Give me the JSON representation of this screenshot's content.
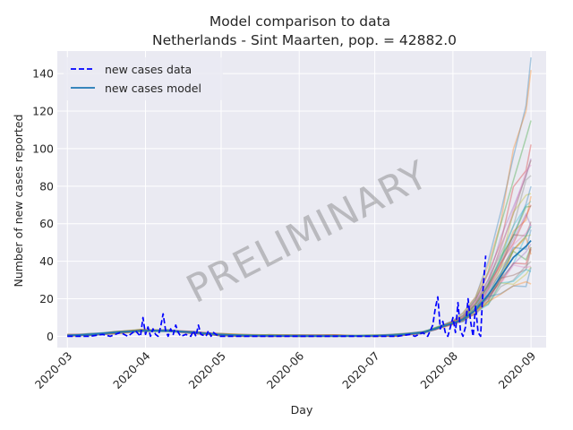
{
  "chart_data": {
    "type": "line",
    "title": "Model comparison to data",
    "subtitle": "Netherlands - Sint Maarten, pop. = 42882.0",
    "xlabel": "Day",
    "ylabel": "Number of new cases reported",
    "watermark": "PRELIMINARY",
    "x_range": [
      "2020-02-26",
      "2020-09-07"
    ],
    "ylim": [
      -6,
      152
    ],
    "x_ticks": [
      "2020-03",
      "2020-04",
      "2020-05",
      "2020-06",
      "2020-07",
      "2020-08",
      "2020-09"
    ],
    "y_ticks": [
      0,
      20,
      40,
      60,
      80,
      100,
      120,
      140
    ],
    "grid": true,
    "background": "#eaeaf2",
    "legend": {
      "position": "top-left",
      "entries": [
        {
          "label": "new cases data",
          "style": "dashed",
          "color": "#0000ff"
        },
        {
          "label": "new cases model",
          "style": "solid",
          "color": "#1f77b4"
        }
      ]
    },
    "series": [
      {
        "name": "new cases data",
        "style": "dashed",
        "color": "#0000ff",
        "points": [
          [
            "2020-03-01",
            0
          ],
          [
            "2020-03-10",
            0
          ],
          [
            "2020-03-15",
            1
          ],
          [
            "2020-03-18",
            0
          ],
          [
            "2020-03-22",
            2
          ],
          [
            "2020-03-25",
            0
          ],
          [
            "2020-03-28",
            3
          ],
          [
            "2020-03-30",
            0
          ],
          [
            "2020-03-31",
            10
          ],
          [
            "2020-04-01",
            1
          ],
          [
            "2020-04-02",
            5
          ],
          [
            "2020-04-03",
            0
          ],
          [
            "2020-04-04",
            4
          ],
          [
            "2020-04-05",
            1
          ],
          [
            "2020-04-06",
            0
          ],
          [
            "2020-04-07",
            5
          ],
          [
            "2020-04-08",
            12
          ],
          [
            "2020-04-09",
            3
          ],
          [
            "2020-04-10",
            0
          ],
          [
            "2020-04-11",
            4
          ],
          [
            "2020-04-12",
            1
          ],
          [
            "2020-04-13",
            6
          ],
          [
            "2020-04-14",
            2
          ],
          [
            "2020-04-15",
            0
          ],
          [
            "2020-04-17",
            1
          ],
          [
            "2020-04-19",
            0
          ],
          [
            "2020-04-20",
            3
          ],
          [
            "2020-04-21",
            0
          ],
          [
            "2020-04-22",
            6
          ],
          [
            "2020-04-23",
            1
          ],
          [
            "2020-04-25",
            0
          ],
          [
            "2020-04-26",
            3
          ],
          [
            "2020-04-27",
            0
          ],
          [
            "2020-04-28",
            2
          ],
          [
            "2020-04-30",
            0
          ],
          [
            "2020-05-15",
            0
          ],
          [
            "2020-06-15",
            0
          ],
          [
            "2020-07-10",
            0
          ],
          [
            "2020-07-15",
            1
          ],
          [
            "2020-07-17",
            0
          ],
          [
            "2020-07-20",
            2
          ],
          [
            "2020-07-22",
            0
          ],
          [
            "2020-07-24",
            6
          ],
          [
            "2020-07-25",
            15
          ],
          [
            "2020-07-26",
            21
          ],
          [
            "2020-07-27",
            4
          ],
          [
            "2020-07-28",
            8
          ],
          [
            "2020-07-29",
            2
          ],
          [
            "2020-07-30",
            0
          ],
          [
            "2020-07-31",
            5
          ],
          [
            "2020-08-01",
            10
          ],
          [
            "2020-08-02",
            2
          ],
          [
            "2020-08-03",
            18
          ],
          [
            "2020-08-04",
            3
          ],
          [
            "2020-08-05",
            0
          ],
          [
            "2020-08-06",
            5
          ],
          [
            "2020-08-07",
            20
          ],
          [
            "2020-08-08",
            8
          ],
          [
            "2020-08-09",
            0
          ],
          [
            "2020-08-10",
            16
          ],
          [
            "2020-08-11",
            2
          ],
          [
            "2020-08-12",
            0
          ],
          [
            "2020-08-13",
            26
          ],
          [
            "2020-08-14",
            43
          ]
        ]
      },
      {
        "name": "new cases model",
        "style": "solid",
        "color": "#1f77b4",
        "points": [
          [
            "2020-03-01",
            0.5
          ],
          [
            "2020-03-10",
            1
          ],
          [
            "2020-03-20",
            2
          ],
          [
            "2020-03-30",
            3
          ],
          [
            "2020-04-10",
            3
          ],
          [
            "2020-04-20",
            2
          ],
          [
            "2020-04-30",
            1
          ],
          [
            "2020-05-10",
            0.5
          ],
          [
            "2020-05-20",
            0.3
          ],
          [
            "2020-06-01",
            0.2
          ],
          [
            "2020-06-15",
            0.2
          ],
          [
            "2020-07-01",
            0.3
          ],
          [
            "2020-07-10",
            0.7
          ],
          [
            "2020-07-20",
            2
          ],
          [
            "2020-07-25",
            4
          ],
          [
            "2020-08-01",
            7
          ],
          [
            "2020-08-05",
            9
          ],
          [
            "2020-08-10",
            14
          ],
          [
            "2020-08-15",
            22
          ],
          [
            "2020-08-20",
            32
          ],
          [
            "2020-08-25",
            42
          ],
          [
            "2020-08-30",
            48
          ],
          [
            "2020-09-01",
            51
          ]
        ]
      }
    ],
    "ensemble": {
      "description_color_cycle": [
        "#1f77b4",
        "#ff7f0e",
        "#2ca02c",
        "#d62728",
        "#9467bd",
        "#8c564b",
        "#e377c2",
        "#7f7f7f",
        "#bcbd22",
        "#17becf"
      ],
      "end_values": [
        143,
        137,
        118,
        104,
        100,
        95,
        91,
        85,
        82,
        78,
        75,
        72,
        70,
        68,
        65,
        63,
        60,
        58,
        56,
        54,
        52,
        50,
        48,
        46,
        44,
        42,
        40,
        38,
        36,
        34,
        33,
        31
      ]
    }
  }
}
